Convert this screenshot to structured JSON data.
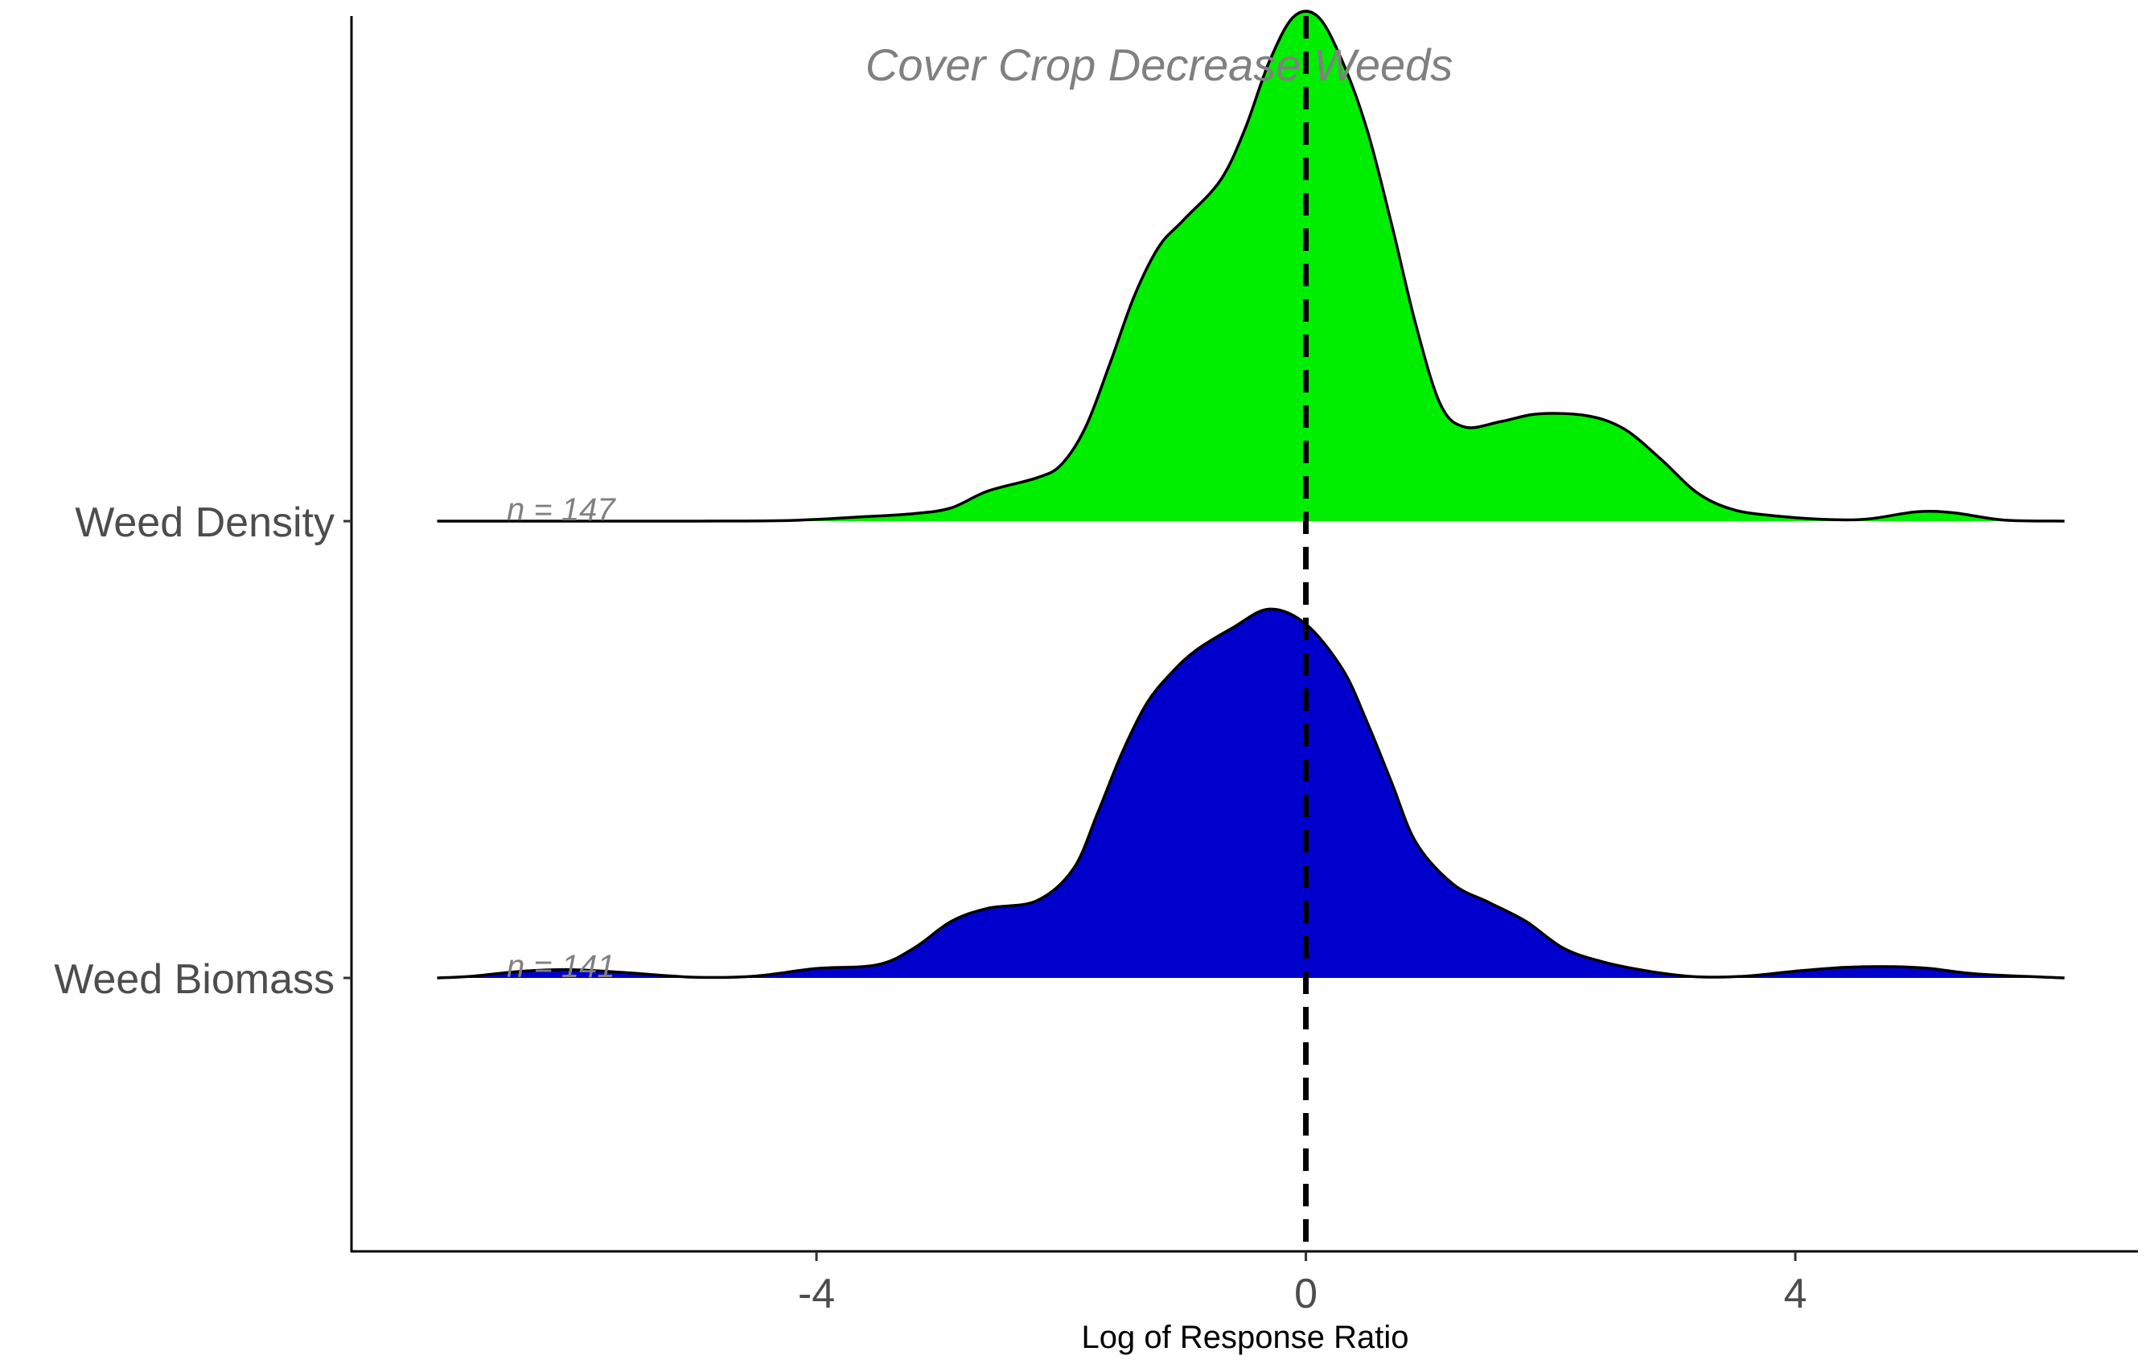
{
  "chart_data": {
    "type": "ridgeline-density",
    "title": "",
    "xlabel": "Log of Response Ratio",
    "ylabel": "",
    "xlim": [
      -7.8,
      6.8
    ],
    "xticks": [
      -4,
      0,
      4
    ],
    "xtick_labels": [
      "-4",
      "0",
      "4"
    ],
    "reference_line": {
      "x": 0,
      "style": "dashed",
      "color": "#000000"
    },
    "annotation": {
      "text": "Cover Crop Decrease Weeds",
      "x": -3.6
    },
    "grid": false,
    "legend": "none",
    "series": [
      {
        "name": "Weed Density",
        "label": "Weed Density",
        "n_label": "n = 147",
        "color": "#00ee00",
        "points": [
          [
            -7.1,
            0
          ],
          [
            -6.0,
            0
          ],
          [
            -5.0,
            0
          ],
          [
            -4.2,
            0.002
          ],
          [
            -3.6,
            0.012
          ],
          [
            -3.2,
            0.02
          ],
          [
            -2.9,
            0.035
          ],
          [
            -2.6,
            0.08
          ],
          [
            -2.2,
            0.115
          ],
          [
            -2.0,
            0.15
          ],
          [
            -1.8,
            0.25
          ],
          [
            -1.6,
            0.42
          ],
          [
            -1.4,
            0.6
          ],
          [
            -1.2,
            0.73
          ],
          [
            -1.0,
            0.8
          ],
          [
            -0.7,
            0.905
          ],
          [
            -0.5,
            1.04
          ],
          [
            -0.3,
            1.22
          ],
          [
            -0.1,
            1.34
          ],
          [
            0.1,
            1.34
          ],
          [
            0.3,
            1.22
          ],
          [
            0.5,
            1.04
          ],
          [
            0.7,
            0.79
          ],
          [
            0.9,
            0.52
          ],
          [
            1.1,
            0.31
          ],
          [
            1.3,
            0.25
          ],
          [
            1.6,
            0.265
          ],
          [
            1.9,
            0.285
          ],
          [
            2.3,
            0.28
          ],
          [
            2.6,
            0.245
          ],
          [
            2.9,
            0.165
          ],
          [
            3.2,
            0.075
          ],
          [
            3.5,
            0.03
          ],
          [
            3.9,
            0.012
          ],
          [
            4.3,
            0.004
          ],
          [
            4.6,
            0.006
          ],
          [
            5.0,
            0.025
          ],
          [
            5.3,
            0.022
          ],
          [
            5.7,
            0.003
          ],
          [
            6.2,
            0
          ]
        ]
      },
      {
        "name": "Weed Biomass",
        "label": "Weed Biomass",
        "n_label": "n = 141",
        "color": "#0000cd",
        "points": [
          [
            -7.1,
            0
          ],
          [
            -6.8,
            0.005
          ],
          [
            -6.4,
            0.018
          ],
          [
            -6.0,
            0.022
          ],
          [
            -5.6,
            0.015
          ],
          [
            -5.0,
            0.002
          ],
          [
            -4.5,
            0.005
          ],
          [
            -4.0,
            0.025
          ],
          [
            -3.5,
            0.035
          ],
          [
            -3.2,
            0.08
          ],
          [
            -2.9,
            0.15
          ],
          [
            -2.6,
            0.185
          ],
          [
            -2.2,
            0.205
          ],
          [
            -1.9,
            0.29
          ],
          [
            -1.7,
            0.44
          ],
          [
            -1.5,
            0.6
          ],
          [
            -1.3,
            0.73
          ],
          [
            -1.1,
            0.81
          ],
          [
            -0.9,
            0.87
          ],
          [
            -0.6,
            0.93
          ],
          [
            -0.3,
            0.98
          ],
          [
            0.0,
            0.94
          ],
          [
            0.3,
            0.82
          ],
          [
            0.5,
            0.68
          ],
          [
            0.7,
            0.52
          ],
          [
            0.9,
            0.36
          ],
          [
            1.2,
            0.25
          ],
          [
            1.5,
            0.2
          ],
          [
            1.8,
            0.15
          ],
          [
            2.1,
            0.08
          ],
          [
            2.4,
            0.045
          ],
          [
            2.8,
            0.018
          ],
          [
            3.2,
            0.003
          ],
          [
            3.6,
            0.005
          ],
          [
            4.0,
            0.018
          ],
          [
            4.4,
            0.028
          ],
          [
            4.8,
            0.03
          ],
          [
            5.1,
            0.025
          ],
          [
            5.5,
            0.01
          ],
          [
            6.2,
            0
          ]
        ]
      }
    ]
  }
}
